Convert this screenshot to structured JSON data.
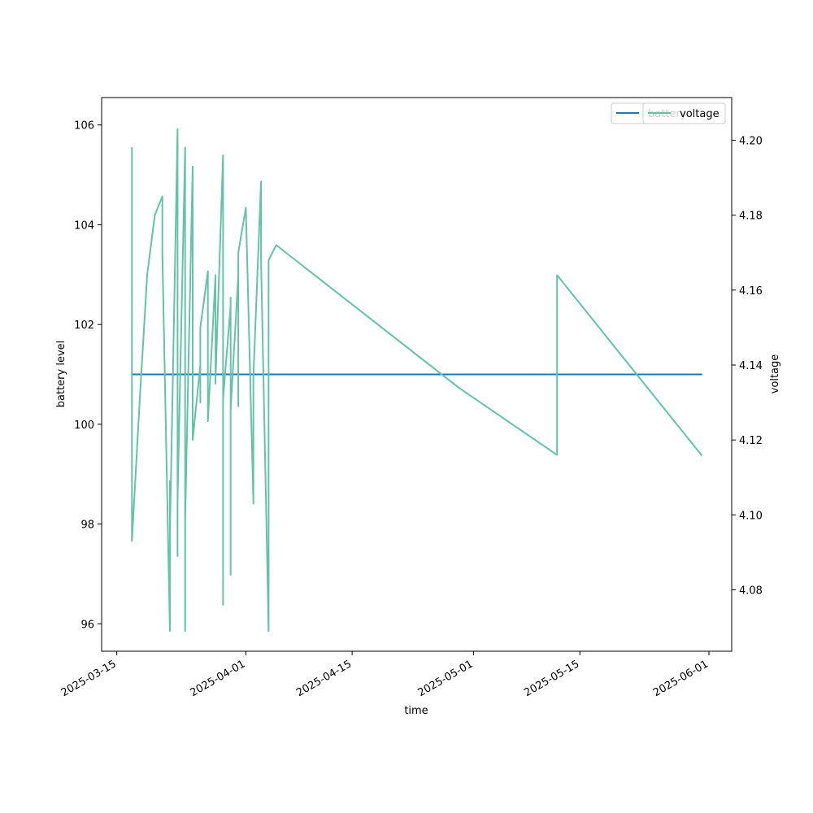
{
  "chart_data": {
    "type": "line",
    "xlabel": "time",
    "ylabel_left": "battery level",
    "ylabel_right": "voltage",
    "x_ticks": [
      "2025-03-15",
      "2025-04-01",
      "2025-04-15",
      "2025-05-01",
      "2025-05-15",
      "2025-06-01"
    ],
    "y_left_ticks": [
      "96",
      "98",
      "100",
      "102",
      "104",
      "106"
    ],
    "y_right_ticks": [
      "4.08",
      "4.10",
      "4.12",
      "4.14",
      "4.16",
      "4.18",
      "4.20"
    ],
    "x_range": [
      "2025-03-13",
      "2025-06-04"
    ],
    "ylim_left": [
      95.45,
      106.55
    ],
    "ylim_right": [
      4.0636,
      4.2114
    ],
    "legend_position": "upper right",
    "series": [
      {
        "name": "battery",
        "axis": "left",
        "color": "#1f77b4",
        "points": [
          [
            "2025-03-17",
            101
          ],
          [
            "2025-05-31",
            101
          ]
        ]
      },
      {
        "name": "voltage",
        "axis": "right",
        "color": "#66c2a5",
        "points": [
          [
            "2025-03-17",
            4.11
          ],
          [
            "2025-03-17",
            4.198
          ],
          [
            "2025-03-17",
            4.11
          ],
          [
            "2025-03-17",
            4.178
          ],
          [
            "2025-03-17",
            4.093
          ],
          [
            "2025-03-18",
            4.13
          ],
          [
            "2025-03-19",
            4.164
          ],
          [
            "2025-03-20",
            4.18
          ],
          [
            "2025-03-21",
            4.185
          ],
          [
            "2025-03-21",
            4.17
          ],
          [
            "2025-03-22",
            4.069
          ],
          [
            "2025-03-22",
            4.109
          ],
          [
            "2025-03-22",
            4.095
          ],
          [
            "2025-03-23",
            4.203
          ],
          [
            "2025-03-23",
            4.089
          ],
          [
            "2025-03-23",
            4.198
          ],
          [
            "2025-03-23",
            4.104
          ],
          [
            "2025-03-24",
            4.198
          ],
          [
            "2025-03-24",
            4.069
          ],
          [
            "2025-03-24",
            4.172
          ],
          [
            "2025-03-24",
            4.09
          ],
          [
            "2025-03-24",
            4.175
          ],
          [
            "2025-03-24",
            4.098
          ],
          [
            "2025-03-25",
            4.193
          ],
          [
            "2025-03-25",
            4.12
          ],
          [
            "2025-03-26",
            4.14
          ],
          [
            "2025-03-26",
            4.13
          ],
          [
            "2025-03-26",
            4.15
          ],
          [
            "2025-03-27",
            4.165
          ],
          [
            "2025-03-27",
            4.125
          ],
          [
            "2025-03-28",
            4.164
          ],
          [
            "2025-03-28",
            4.135
          ],
          [
            "2025-03-28",
            4.159
          ],
          [
            "2025-03-28",
            4.136
          ],
          [
            "2025-03-29",
            4.196
          ],
          [
            "2025-03-29",
            4.144
          ],
          [
            "2025-03-29",
            4.076
          ],
          [
            "2025-03-29",
            4.131
          ],
          [
            "2025-03-30",
            4.156
          ],
          [
            "2025-03-30",
            4.084
          ],
          [
            "2025-03-30",
            4.158
          ],
          [
            "2025-03-30",
            4.128
          ],
          [
            "2025-03-31",
            4.164
          ],
          [
            "2025-03-31",
            4.129
          ],
          [
            "2025-03-31",
            4.17
          ],
          [
            "2025-04-01",
            4.182
          ],
          [
            "2025-04-02",
            4.103
          ],
          [
            "2025-04-02",
            4.137
          ],
          [
            "2025-04-03",
            4.189
          ],
          [
            "2025-04-03",
            4.168
          ],
          [
            "2025-04-04",
            4.069
          ],
          [
            "2025-04-04",
            4.152
          ],
          [
            "2025-04-04",
            4.079
          ],
          [
            "2025-04-04",
            4.168
          ],
          [
            "2025-04-05",
            4.172
          ],
          [
            "2025-04-29",
            4.134
          ],
          [
            "2025-05-12",
            4.116
          ],
          [
            "2025-05-12",
            4.164
          ],
          [
            "2025-05-31",
            4.116
          ]
        ]
      }
    ]
  }
}
